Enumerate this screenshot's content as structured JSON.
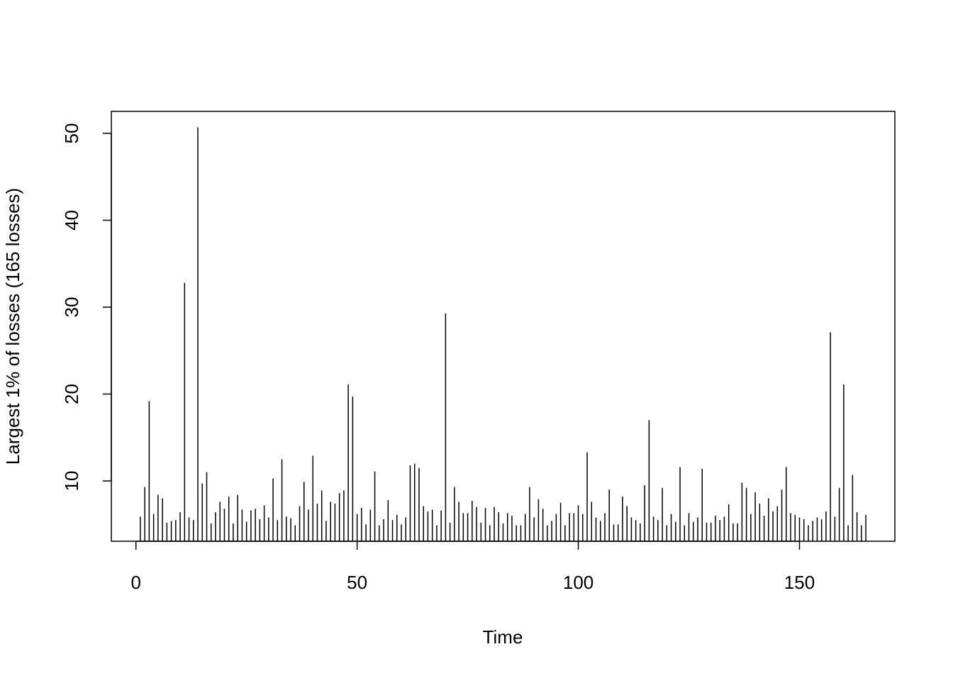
{
  "chart_data": {
    "type": "bar",
    "x_label": "Time",
    "y_label": "Largest 1% of losses (165 losses)",
    "color": "#000000",
    "x": [
      1,
      2,
      3,
      4,
      5,
      6,
      7,
      8,
      9,
      10,
      11,
      12,
      13,
      14,
      15,
      16,
      17,
      18,
      19,
      20,
      21,
      22,
      23,
      24,
      25,
      26,
      27,
      28,
      29,
      30,
      31,
      32,
      33,
      34,
      35,
      36,
      37,
      38,
      39,
      40,
      41,
      42,
      43,
      44,
      45,
      46,
      47,
      48,
      49,
      50,
      51,
      52,
      53,
      54,
      55,
      56,
      57,
      58,
      59,
      60,
      61,
      62,
      63,
      64,
      65,
      66,
      67,
      68,
      69,
      70,
      71,
      72,
      73,
      74,
      75,
      76,
      77,
      78,
      79,
      80,
      81,
      82,
      83,
      84,
      85,
      86,
      87,
      88,
      89,
      90,
      91,
      92,
      93,
      94,
      95,
      96,
      97,
      98,
      99,
      100,
      101,
      102,
      103,
      104,
      105,
      106,
      107,
      108,
      109,
      110,
      111,
      112,
      113,
      114,
      115,
      116,
      117,
      118,
      119,
      120,
      121,
      122,
      123,
      124,
      125,
      126,
      127,
      128,
      129,
      130,
      131,
      132,
      133,
      134,
      135,
      136,
      137,
      138,
      139,
      140,
      141,
      142,
      143,
      144,
      145,
      146,
      147,
      148,
      149,
      150,
      151,
      152,
      153,
      154,
      155,
      156,
      157,
      158,
      159,
      160,
      161,
      162,
      163,
      164,
      165
    ],
    "values": [
      5.9,
      9.3,
      19.2,
      6.2,
      8.4,
      8.0,
      5.2,
      5.4,
      5.5,
      6.4,
      32.8,
      5.8,
      5.5,
      50.7,
      9.7,
      11.0,
      5.1,
      6.4,
      7.6,
      6.8,
      8.2,
      5.1,
      8.4,
      6.7,
      5.3,
      6.6,
      6.8,
      5.6,
      7.2,
      5.8,
      10.3,
      5.5,
      12.5,
      5.9,
      5.7,
      4.9,
      7.1,
      9.9,
      6.7,
      12.9,
      7.4,
      8.9,
      5.4,
      7.6,
      7.4,
      8.6,
      8.9,
      21.1,
      19.7,
      6.2,
      6.9,
      5.0,
      6.7,
      11.1,
      4.9,
      5.6,
      7.8,
      5.5,
      6.1,
      5.0,
      5.8,
      11.8,
      12.0,
      11.5,
      7.1,
      6.5,
      6.7,
      4.9,
      6.6,
      29.3,
      5.2,
      9.3,
      7.6,
      6.3,
      6.3,
      7.7,
      7.0,
      5.2,
      6.9,
      4.9,
      7.0,
      6.4,
      5.1,
      6.3,
      6.0,
      4.9,
      4.9,
      6.2,
      9.3,
      5.8,
      7.9,
      6.8,
      4.9,
      5.4,
      6.2,
      7.5,
      4.9,
      6.3,
      6.3,
      7.2,
      6.2,
      13.3,
      7.6,
      5.8,
      5.4,
      6.3,
      9.0,
      5.0,
      5.0,
      8.2,
      7.1,
      5.8,
      5.5,
      5.1,
      9.5,
      17.0,
      5.9,
      5.5,
      9.2,
      4.9,
      6.2,
      5.3,
      11.6,
      4.9,
      6.3,
      5.3,
      5.8,
      11.4,
      5.2,
      5.2,
      6.0,
      5.5,
      5.9,
      7.3,
      5.1,
      5.1,
      9.8,
      9.2,
      6.2,
      8.7,
      7.4,
      6.0,
      8.0,
      6.5,
      7.1,
      9.0,
      11.6,
      6.3,
      6.1,
      5.8,
      5.6,
      4.9,
      5.4,
      5.8,
      5.6,
      6.5,
      27.1,
      5.9,
      9.2,
      21.1,
      4.9,
      10.7,
      6.4,
      4.9,
      6.1
    ],
    "xlim": [
      -5.56,
      171.56
    ],
    "ylim": [
      3.06,
      52.53
    ],
    "xticks": [
      0,
      50,
      100,
      150
    ],
    "yticks": [
      10,
      20,
      30,
      40,
      50
    ]
  }
}
